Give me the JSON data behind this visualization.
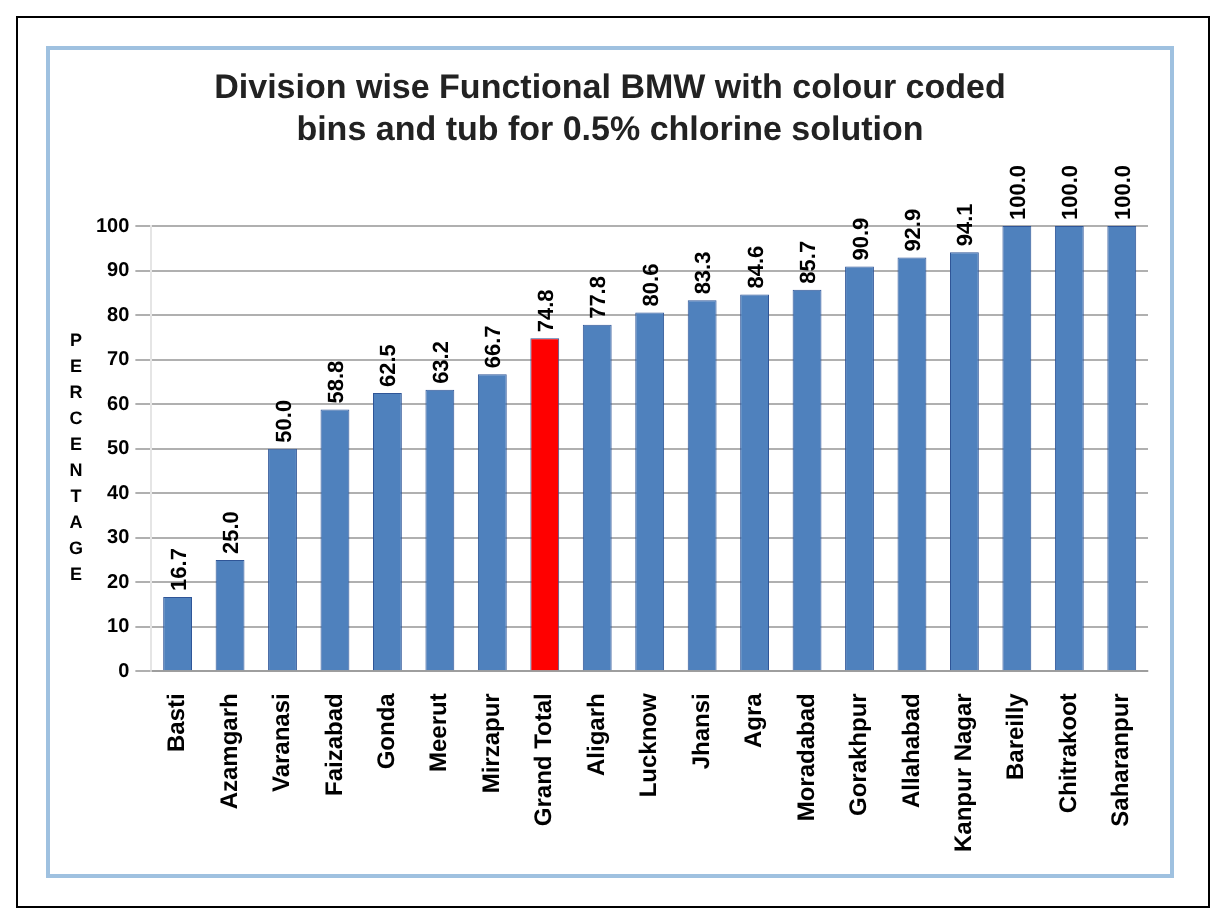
{
  "chart_data": {
    "type": "bar",
    "title": "Division wise Functional BMW  with colour coded bins and tub for 0.5% chlorine solution",
    "ylabel": "PERCENTAGE",
    "categories": [
      "Basti",
      "Azamgarh",
      "Varanasi",
      "Faizabad",
      "Gonda",
      "Meerut",
      "Mirzapur",
      "Grand Total",
      "Aligarh",
      "Lucknow",
      "Jhansi",
      "Agra",
      "Moradabad",
      "Gorakhpur",
      "Allahabad",
      "Kanpur Nagar",
      "Bareilly",
      "Chitrakoot",
      "Saharanpur"
    ],
    "values": [
      16.7,
      25.0,
      50.0,
      58.8,
      62.5,
      63.2,
      66.7,
      74.8,
      77.8,
      80.6,
      83.3,
      84.6,
      85.7,
      90.9,
      92.9,
      94.1,
      100.0,
      100.0,
      100.0
    ],
    "value_labels": [
      "16.7",
      "25.0",
      "50.0",
      "58.8",
      "62.5",
      "63.2",
      "66.7",
      "74.8",
      "77.8",
      "80.6",
      "83.3",
      "84.6",
      "85.7",
      "90.9",
      "92.9",
      "94.1",
      "100.0",
      "100.0",
      "100.0"
    ],
    "colors": [
      "#4f81bd",
      "#4f81bd",
      "#4f81bd",
      "#4f81bd",
      "#4f81bd",
      "#4f81bd",
      "#4f81bd",
      "#ff0000",
      "#4f81bd",
      "#4f81bd",
      "#4f81bd",
      "#4f81bd",
      "#4f81bd",
      "#4f81bd",
      "#4f81bd",
      "#4f81bd",
      "#4f81bd",
      "#4f81bd",
      "#4f81bd"
    ],
    "ylim": [
      0,
      100
    ],
    "yticks": [
      0,
      10,
      20,
      30,
      40,
      50,
      60,
      70,
      80,
      90,
      100
    ],
    "grid": "y",
    "legend": false
  }
}
